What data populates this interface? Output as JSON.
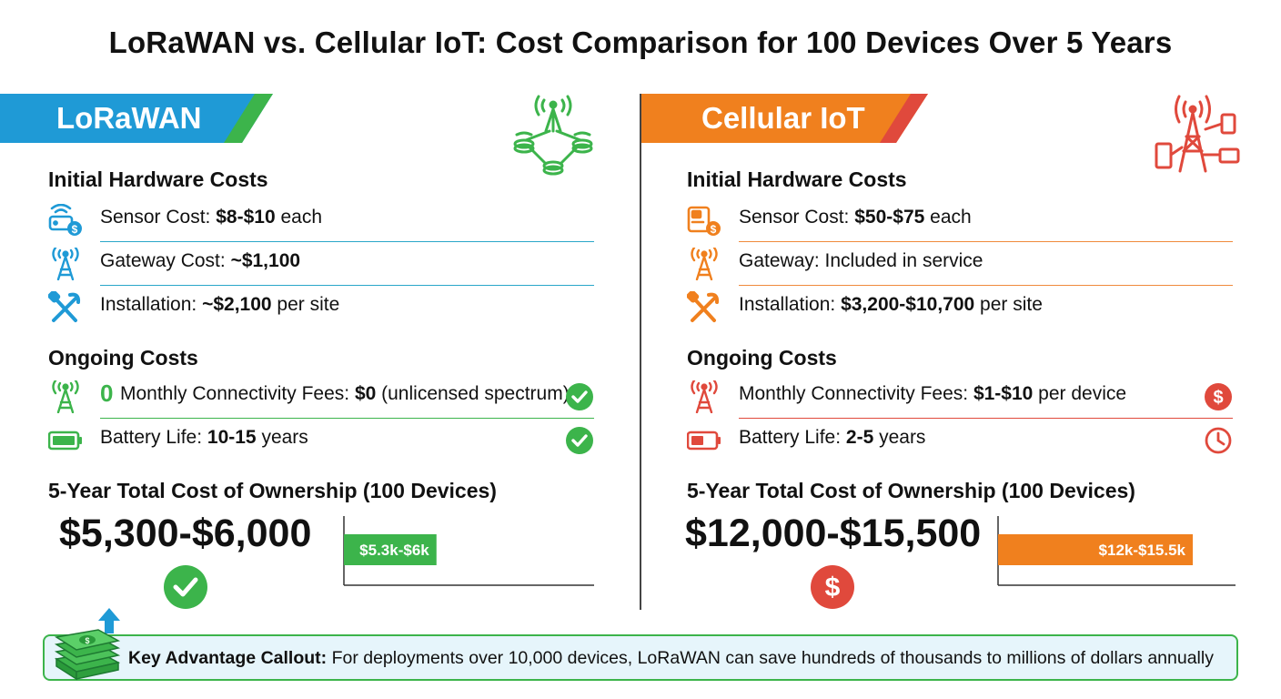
{
  "title": "LoRaWAN vs. Cellular IoT: Cost Comparison for 100 Devices Over 5 Years",
  "colors": {
    "lorawan_blue": "#1f9ad6",
    "lorawan_green": "#3cb44b",
    "cellular_orange": "#f0801e",
    "cellular_red": "#e0493c"
  },
  "lorawan": {
    "banner": "LoRaWAN",
    "corner_icon": "network-antenna-icon",
    "hardware_heading": "Initial Hardware Costs",
    "hardware": [
      {
        "icon": "sensor-dollar-icon",
        "label": "Sensor Cost: ",
        "value": "$8-$10",
        "suffix": " each"
      },
      {
        "icon": "gateway-tower-icon",
        "label": "Gateway Cost: ",
        "value": "~$1,100",
        "suffix": ""
      },
      {
        "icon": "tools-icon",
        "label": "Installation: ",
        "value": "~$2,100",
        "suffix": " per site"
      }
    ],
    "ongoing_heading": "Ongoing Costs",
    "ongoing": [
      {
        "icon": "antenna-icon",
        "badge": "0",
        "label": "Monthly Connectivity Fees: ",
        "value": "$0",
        "suffix": " (unlicensed spectrum)",
        "status_icon": "check-icon"
      },
      {
        "icon": "battery-full-icon",
        "label": "Battery Life: ",
        "value": "10-15",
        "suffix": " years",
        "status_icon": "check-icon"
      }
    ],
    "tco_heading": "5-Year Total Cost of Ownership (100 Devices)",
    "tco_value": "$5,300-$6,000",
    "tco_icon": "check-icon",
    "bar_label": "$5.3k-$6k",
    "bar_fraction": 0.37
  },
  "cellular": {
    "banner": "Cellular IoT",
    "corner_icon": "cell-tower-devices-icon",
    "hardware_heading": "Initial Hardware Costs",
    "hardware": [
      {
        "icon": "sensor-dollar-icon",
        "label": "Sensor Cost: ",
        "value": "$50-$75",
        "suffix": " each"
      },
      {
        "icon": "gateway-tower-icon",
        "label": "Gateway: Included in service",
        "value": "",
        "suffix": ""
      },
      {
        "icon": "tools-icon",
        "label": "Installation: ",
        "value": "$3,200-$10,700",
        "suffix": " per site"
      }
    ],
    "ongoing_heading": "Ongoing Costs",
    "ongoing": [
      {
        "icon": "antenna-icon",
        "label": "Monthly Connectivity Fees: ",
        "value": "$1-$10",
        "suffix": " per device",
        "status_icon": "dollar-icon"
      },
      {
        "icon": "battery-low-icon",
        "label": "Battery Life: ",
        "value": "2-5",
        "suffix": " years",
        "status_icon": "clock-icon"
      }
    ],
    "tco_heading": "5-Year Total Cost of Ownership (100 Devices)",
    "tco_value": "$12,000-$15,500",
    "tco_icon": "dollar-icon",
    "bar_label": "$12k-$15.5k",
    "bar_fraction": 0.82
  },
  "callout": {
    "icon": "money-stack-up-icon",
    "label": "Key Advantage Callout:",
    "text": " For deployments over 10,000 devices, LoRaWAN can save hundreds of thousands to millions of dollars annually"
  }
}
